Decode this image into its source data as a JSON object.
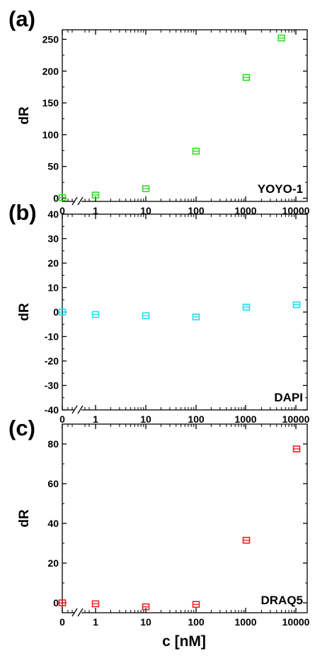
{
  "figure": {
    "xlabel": "c [nM]"
  },
  "chart_data": [
    {
      "type": "scatter",
      "panel_label": "(a)",
      "series_label": "YOYO-1",
      "ylabel": "dR",
      "x_scale": "broken-log",
      "x": [
        0,
        1,
        10,
        100,
        1000,
        5000
      ],
      "x_ticks": [
        "0",
        "1",
        "10",
        "100",
        "1000",
        "10000"
      ],
      "ylim": [
        -5,
        265
      ],
      "y_ticks": [
        0,
        50,
        100,
        150,
        200,
        250
      ],
      "series": [
        {
          "values": [
            1,
            5,
            15,
            74,
            190,
            252
          ],
          "color": "#33dd22"
        }
      ]
    },
    {
      "type": "scatter",
      "panel_label": "(b)",
      "series_label": "DAPI",
      "ylabel": "dR",
      "x_scale": "broken-log",
      "x": [
        0,
        1,
        10,
        100,
        1000,
        10000
      ],
      "x_ticks": [
        "0",
        "1",
        "10",
        "100",
        "1000",
        "10000"
      ],
      "ylim": [
        -40,
        40
      ],
      "y_ticks": [
        -40,
        -30,
        -20,
        -10,
        0,
        10,
        20,
        30,
        40
      ],
      "series": [
        {
          "values": [
            0,
            -1,
            -1.5,
            -2,
            2,
            3
          ],
          "color": "#22ddf0"
        }
      ]
    },
    {
      "type": "scatter",
      "panel_label": "(c)",
      "series_label": "DRAQ5",
      "ylabel": "dR",
      "x_scale": "broken-log",
      "x": [
        0,
        1,
        10,
        100,
        1000,
        10000
      ],
      "x_ticks": [
        "0",
        "1",
        "10",
        "100",
        "1000",
        "10000"
      ],
      "ylim": [
        -5,
        90
      ],
      "y_ticks": [
        0,
        20,
        40,
        60,
        80
      ],
      "series": [
        {
          "values": [
            0,
            -0.5,
            -2,
            -0.8,
            31.5,
            77.5
          ],
          "color": "#ee2222"
        }
      ]
    }
  ]
}
